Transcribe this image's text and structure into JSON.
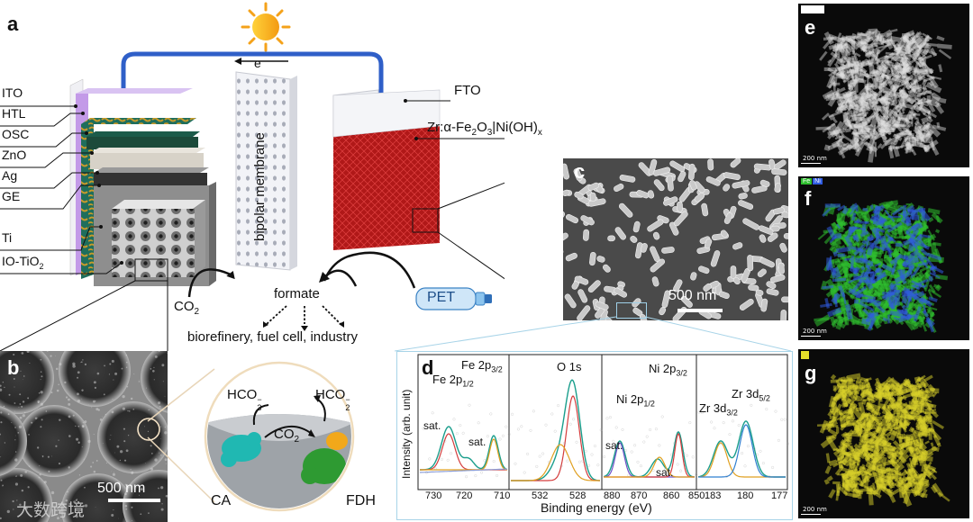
{
  "panels": {
    "a": "a",
    "b": "b",
    "c": "c",
    "d": "d",
    "e": "e",
    "f": "f",
    "g": "g"
  },
  "device": {
    "left_layers": [
      "ITO",
      "HTL",
      "OSC",
      "ZnO",
      "Ag",
      "GE",
      "Ti",
      "IO-TiO"
    ],
    "io_tio_sub": "2",
    "electron": "e⁻",
    "membrane": "bipolar membrane",
    "fto": "FTO",
    "photoanode": "Zr:α-Fe",
    "photoanode_sub1": "2",
    "photoanode_mid": "O",
    "photoanode_sub2": "3",
    "photoanode_tail": "|Ni(OH)",
    "photoanode_sub3": "x",
    "co2": "CO",
    "co2_sub": "2",
    "formate": "formate",
    "products": "biorefinery, fuel cell, industry",
    "pet": "PET"
  },
  "sem_b": {
    "scale": "500 nm"
  },
  "sem_c": {
    "scale": "500 nm"
  },
  "enzyme": {
    "hco3": "HCO",
    "hco3_sub": "3",
    "hco3_sup": "−",
    "co2": "CO",
    "co2_sub": "2",
    "hco2": "HCO",
    "hco2_sub": "2",
    "hco2_sup": "−",
    "ca": "CA",
    "fdh": "FDH"
  },
  "xps": {
    "ylabel": "Intensity (arb. unit)",
    "xlabel": "Binding energy (eV)",
    "fe2p12": "Fe 2p",
    "fe2p12_sub": "1/2",
    "fe2p32": "Fe 2p",
    "fe2p32_sub": "3/2",
    "o1s": "O 1s",
    "ni2p12": "Ni 2p",
    "ni2p12_sub": "1/2",
    "ni2p32": "Ni 2p",
    "ni2p32_sub": "3/2",
    "zr3d32": "Zr 3d",
    "zr3d32_sub": "3/2",
    "zr3d52": "Zr 3d",
    "zr3d52_sub": "5/2",
    "sat": "sat.",
    "ticks_fe": [
      "730",
      "720",
      "710"
    ],
    "ticks_o": [
      "532",
      "528"
    ],
    "ticks_ni": [
      "880",
      "870",
      "860",
      "850"
    ],
    "ticks_zr": [
      "183",
      "180",
      "177"
    ]
  },
  "stem": {
    "e_scale": "200 nm",
    "f_scale": "200 nm",
    "f_legend_fe": "Fe",
    "f_legend_ni": "Ni",
    "g_scale": "200 nm"
  },
  "watermark": "大数跨境",
  "colors": {
    "wire": "#2f5fc8",
    "ito": "#e8e8ee",
    "htl": "#b690e0",
    "osc": "#1d6b5a",
    "hematite": "#a31515",
    "fe_map": "#3ccf3c",
    "ni_map": "#2f5be0",
    "zr_map": "#e6e02a"
  }
}
